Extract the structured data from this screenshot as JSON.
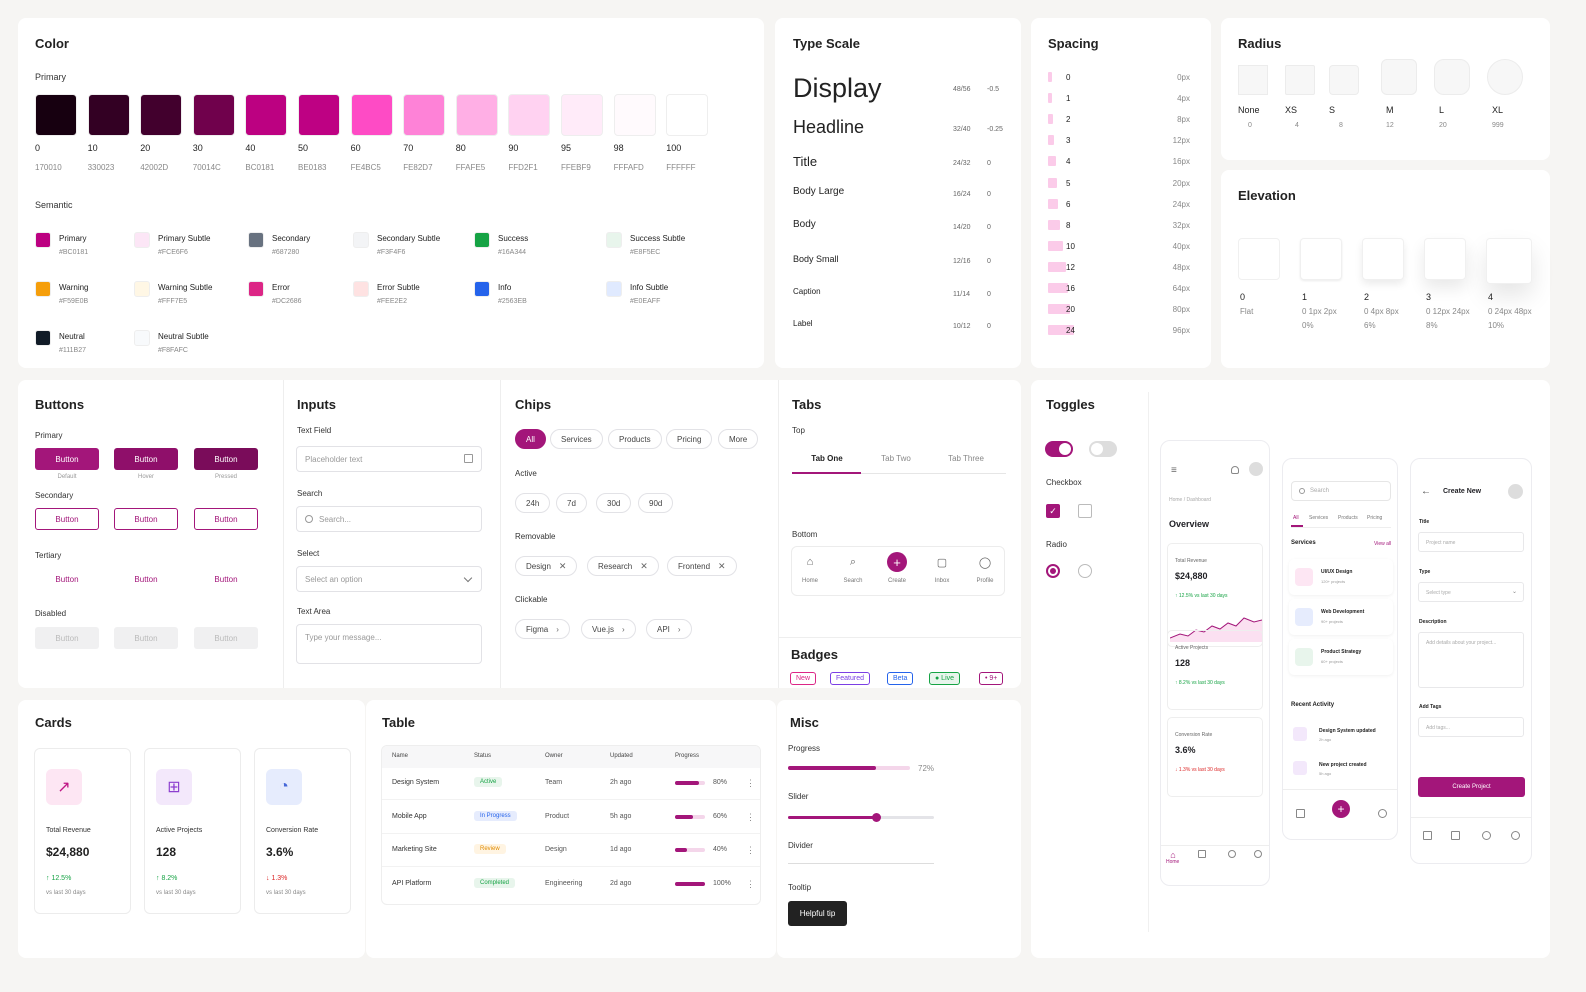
{
  "color": {
    "title": "Color",
    "primary_label": "Primary",
    "primary": [
      [
        "#170010",
        "0",
        "170010"
      ],
      [
        "#330023",
        "10",
        "330023"
      ],
      [
        "#42002D",
        "20",
        "42002D"
      ],
      [
        "#70014C",
        "30",
        "70014C"
      ],
      [
        "#BC0181",
        "40",
        "BC0181"
      ],
      [
        "#BE0183",
        "50",
        "BE0183"
      ],
      [
        "#FE4BC5",
        "60",
        "FE4BC5"
      ],
      [
        "#FE82D7",
        "70",
        "FE82D7"
      ],
      [
        "#FFAFE5",
        "80",
        "FFAFE5"
      ],
      [
        "#FFD2F1",
        "90",
        "FFD2F1"
      ],
      [
        "#FFEBF9",
        "95",
        "FFEBF9"
      ],
      [
        "#FFFAFD",
        "98",
        "FFFAFD"
      ],
      [
        "#FFFFFF",
        "100",
        "FFFFFF"
      ]
    ],
    "semantic_label": "Semantic",
    "semantic": [
      [
        "#BC0181",
        "Primary",
        "#BC0181"
      ],
      [
        "#FCE6F6",
        "Primary Subtle",
        "#FCE6F6"
      ],
      [
        "#687280",
        "Secondary",
        "#687280"
      ],
      [
        "#F3F4F6",
        "Secondary Subtle",
        "#F3F4F6"
      ],
      [
        "#16A344",
        "Success",
        "#16A344"
      ],
      [
        "#E8F5EC",
        "Success Subtle",
        "#E8F5EC"
      ],
      [
        "#F59E0B",
        "Warning",
        "#F59E0B"
      ],
      [
        "#FFF7E5",
        "Warning Subtle",
        "#FFF7E5"
      ],
      [
        "#DC2686",
        "Error",
        "#DC2686"
      ],
      [
        "#FEE2E2",
        "Error Subtle",
        "#FEE2E2"
      ],
      [
        "#2563EB",
        "Info",
        "#2563EB"
      ],
      [
        "#E0EAFF",
        "Info Subtle",
        "#E0EAFF"
      ],
      [
        "#111B27",
        "Neutral",
        "#111B27"
      ],
      [
        "#F8FAFC",
        "Neutral Subtle",
        "#F8FAFC"
      ]
    ]
  },
  "type": {
    "title": "Type Scale",
    "rows": [
      [
        "Display",
        "48/56",
        "-0.5"
      ],
      [
        "Headline",
        "32/40",
        "-0.25"
      ],
      [
        "Title",
        "24/32",
        "0"
      ],
      [
        "Body Large",
        "16/24",
        "0"
      ],
      [
        "Body",
        "14/20",
        "0"
      ],
      [
        "Body Small",
        "12/16",
        "0"
      ],
      [
        "Caption",
        "11/14",
        "0"
      ],
      [
        "Label",
        "10/12",
        "0"
      ]
    ]
  },
  "spacing": {
    "title": "Spacing",
    "rows": [
      [
        "0",
        "0px"
      ],
      [
        "1",
        "4px"
      ],
      [
        "2",
        "8px"
      ],
      [
        "3",
        "12px"
      ],
      [
        "4",
        "16px"
      ],
      [
        "5",
        "20px"
      ],
      [
        "6",
        "24px"
      ],
      [
        "8",
        "32px"
      ],
      [
        "10",
        "40px"
      ],
      [
        "12",
        "48px"
      ],
      [
        "16",
        "64px"
      ],
      [
        "20",
        "80px"
      ],
      [
        "24",
        "96px"
      ]
    ]
  },
  "radius": {
    "title": "Radius",
    "items": [
      [
        "None",
        "0"
      ],
      [
        "XS",
        "4"
      ],
      [
        "S",
        "8"
      ],
      [
        "M",
        "12"
      ],
      [
        "L",
        "20"
      ],
      [
        "XL",
        "999"
      ]
    ]
  },
  "elevation": {
    "title": "Elevation",
    "items": [
      [
        "0",
        "Flat",
        ""
      ],
      [
        "1",
        "0 1px 2px",
        "0%"
      ],
      [
        "2",
        "0 4px 8px",
        "6%"
      ],
      [
        "3",
        "0 12px 24px",
        "8%"
      ],
      [
        "4",
        "0 24px 48px",
        "10%"
      ]
    ]
  },
  "buttons": {
    "title": "Buttons",
    "primary": "Primary",
    "secondary": "Secondary",
    "tertiary": "Tertiary",
    "disabled": "Disabled",
    "label": "Button",
    "states": [
      "Default",
      "Hover",
      "Pressed"
    ]
  },
  "inputs": {
    "title": "Inputs",
    "text_field": "Text Field",
    "text_ph": "Placeholder text",
    "search": "Search",
    "search_ph": "Search...",
    "select": "Select",
    "select_ph": "Select an option",
    "textarea": "Text Area",
    "textarea_ph": "Type your message..."
  },
  "chips": {
    "title": "Chips",
    "filter": [
      "All",
      "Services",
      "Products",
      "Pricing",
      "More"
    ],
    "active": "Active",
    "active_items": [
      "24h",
      "7d",
      "30d",
      "90d"
    ],
    "removable": "Removable",
    "removable_items": [
      "Design",
      "Research",
      "Frontend"
    ],
    "clickable": "Clickable",
    "clickable_items": [
      "Figma",
      "Vue.js",
      "API"
    ]
  },
  "tabs": {
    "title": "Tabs",
    "top": "Top",
    "items": [
      "Tab One",
      "Tab Two",
      "Tab Three"
    ],
    "bottom": "Bottom",
    "bottom_items": [
      "Home",
      "Search",
      "Create",
      "Inbox",
      "Profile"
    ]
  },
  "badges": {
    "title": "Badges",
    "items": [
      "New",
      "Featured",
      "Beta",
      "Live",
      "9+"
    ]
  },
  "toggles": {
    "title": "Toggles",
    "checkbox": "Checkbox",
    "radio": "Radio"
  },
  "cards": {
    "title": "Cards",
    "items": [
      [
        "Total Revenue",
        "$24,880",
        "12.5%",
        "vs last 30 days",
        "up"
      ],
      [
        "Active Projects",
        "128",
        "8.2%",
        "vs last 30 days",
        "up"
      ],
      [
        "Conversion Rate",
        "3.6%",
        "1.3%",
        "vs last 30 days",
        "down"
      ]
    ]
  },
  "table": {
    "title": "Table",
    "headers": [
      "Name",
      "Status",
      "Owner",
      "Updated",
      "Progress"
    ],
    "rows": [
      [
        "Design System",
        "Active",
        "Team",
        "2h ago",
        "80%",
        0.8
      ],
      [
        "Mobile App",
        "In Progress",
        "Product",
        "5h ago",
        "60%",
        0.6
      ],
      [
        "Marketing Site",
        "Review",
        "Design",
        "1d ago",
        "40%",
        0.4
      ],
      [
        "API Platform",
        "Completed",
        "Engineering",
        "2d ago",
        "100%",
        1.0
      ]
    ]
  },
  "misc": {
    "title": "Misc",
    "progress": "Progress",
    "progress_value": "72%",
    "progress_fraction": 0.72,
    "slider": "Slider",
    "slider_fraction": 0.6,
    "divider": "Divider",
    "tooltip": "Tooltip",
    "tooltip_text": "Helpful tip"
  },
  "phone1": {
    "crumb": "Home / Dashboard",
    "title": "Overview",
    "stats": [
      [
        "Total Revenue",
        "$24,880",
        "12.5%",
        "vs last 30 days"
      ],
      [
        "Active Projects",
        "128",
        "8.2%",
        "vs last 30 days"
      ],
      [
        "Conversion Rate",
        "3.6%",
        "1.3%",
        "vs last 30 days"
      ]
    ],
    "nav": "Home"
  },
  "phone2": {
    "search": "Search",
    "tabs": [
      "All",
      "Services",
      "Products",
      "Pricing"
    ],
    "services": "Services",
    "view_all": "View all",
    "items": [
      [
        "UI/UX Design",
        "120+ projects"
      ],
      [
        "Web Development",
        "90+ projects"
      ],
      [
        "Product Strategy",
        "60+ projects"
      ]
    ],
    "recent": "Recent Activity",
    "activity": [
      [
        "Design System updated",
        "2h ago"
      ],
      [
        "New project created",
        "5h ago"
      ]
    ]
  },
  "phone3": {
    "title": "Create New",
    "fields": [
      [
        "Title",
        "Project name"
      ],
      [
        "Type",
        "Select type"
      ],
      [
        "Description",
        "Add details about your project..."
      ],
      [
        "Add Tags",
        "Add tags..."
      ]
    ],
    "cta": "Create Project"
  }
}
